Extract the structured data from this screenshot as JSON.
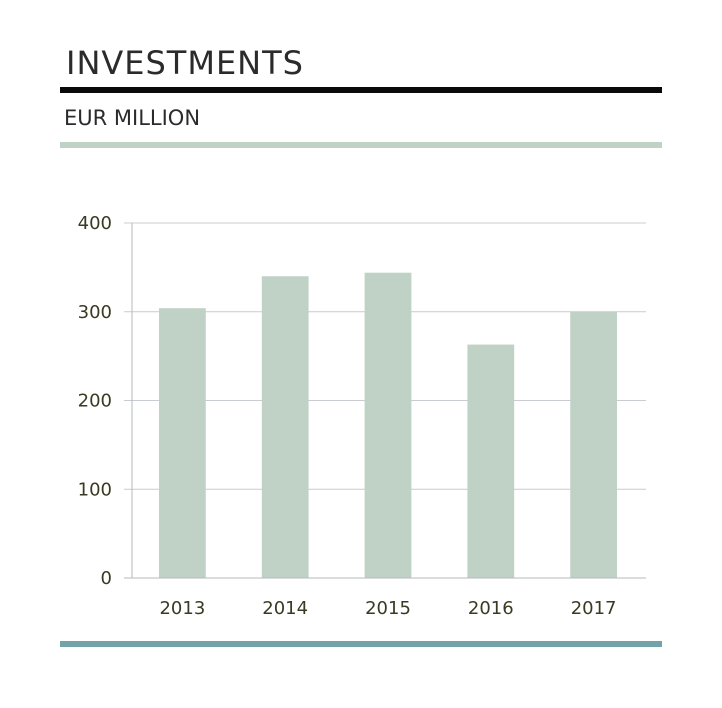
{
  "header": {
    "title": "INVESTMENTS",
    "subtitle": "EUR MILLION"
  },
  "colors": {
    "bar": "#c0d2c6",
    "rule_top": "#0a0a0a",
    "rule_mid": "#c0d2c6",
    "rule_bottom": "#72a3a8",
    "grid": "#c9ccd1",
    "axis": "#b6b8bd",
    "tick_text": "#3a3a22"
  },
  "chart_data": {
    "type": "bar",
    "title": "INVESTMENTS",
    "subtitle": "EUR MILLION",
    "xlabel": "",
    "ylabel": "",
    "categories": [
      "2013",
      "2014",
      "2015",
      "2016",
      "2017"
    ],
    "values": [
      304,
      340,
      344,
      263,
      300
    ],
    "ylim": [
      0,
      400
    ],
    "yticks": [
      0,
      100,
      200,
      300,
      400
    ],
    "grid": true,
    "legend": "none"
  }
}
